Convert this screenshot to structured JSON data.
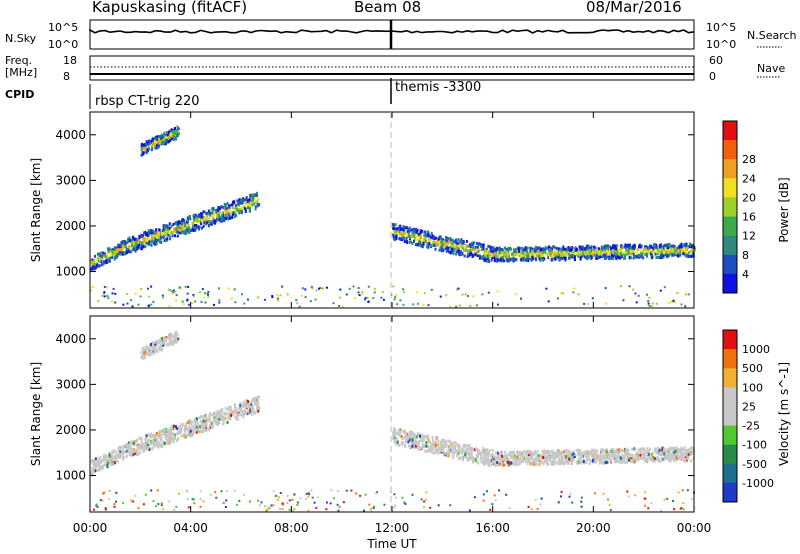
{
  "header": {
    "station": "Kapuskasing (fitACF)",
    "beam": "Beam 08",
    "date": "08/Mar/2016"
  },
  "top_panels": {
    "nsky_label": "N.Sky",
    "nsky_ticks": [
      "10^5",
      "10^0"
    ],
    "nsearch_label": "N.Search",
    "nsearch_ticks": [
      "10^5",
      "10^0"
    ],
    "freq_label": "Freq.",
    "freq_unit": "[MHz]",
    "freq_ticks": [
      "18",
      "8"
    ],
    "nave_label": "Nave",
    "nave_ticks": [
      "60",
      "0"
    ],
    "cpid_label": "CPID",
    "cpid_segments": [
      "rbsp CT-trig 220",
      "themis -3300"
    ]
  },
  "chart_data": [
    {
      "type": "heatmap",
      "title": "",
      "variable": "Power",
      "colorbar_label": "Power [dB]",
      "colorbar_ticks": [
        4,
        8,
        12,
        16,
        20,
        24,
        28
      ],
      "colors": [
        "#1010e0",
        "#1e4fc0",
        "#2f8a7a",
        "#3caa4a",
        "#9ed02a",
        "#f0e020",
        "#f0a020",
        "#f06010",
        "#e01010"
      ],
      "ylabel": "Slant Range [km]",
      "ylim": [
        200,
        4500
      ],
      "yticks": [
        1000,
        2000,
        3000,
        4000
      ],
      "xlim": [
        0,
        24
      ],
      "scatter_bands": [
        {
          "start_hour": 0.0,
          "end_hour": 1.5,
          "range_start": 1200,
          "range_end": 1600,
          "width": 300
        },
        {
          "start_hour": 1.5,
          "end_hour": 6.7,
          "range_start": 1600,
          "range_end": 2600,
          "width": 350
        },
        {
          "start_hour": 2.0,
          "end_hour": 3.5,
          "range_start": 3700,
          "range_end": 4100,
          "width": 250
        },
        {
          "start_hour": 12.0,
          "end_hour": 16.0,
          "range_start": 1900,
          "range_end": 1400,
          "width": 350
        },
        {
          "start_hour": 16.0,
          "end_hour": 24.0,
          "range_start": 1400,
          "range_end": 1500,
          "width": 300
        }
      ]
    },
    {
      "type": "heatmap",
      "title": "",
      "variable": "Velocity",
      "colorbar_label": "Velocity [m s^-1]",
      "colorbar_ticks": [
        1000,
        500,
        100,
        25,
        -25,
        -100,
        -500,
        -1000
      ],
      "colors": [
        "#1e3cc8",
        "#1e6e8c",
        "#2a8a4a",
        "#50c830",
        "#c8c8c8",
        "#c8c8c8",
        "#f0b030",
        "#f07010",
        "#e01010"
      ],
      "ylabel": "Slant Range [km]",
      "ylim": [
        200,
        4500
      ],
      "yticks": [
        1000,
        2000,
        3000,
        4000
      ],
      "xlim": [
        0,
        24
      ],
      "xlabel": "Time UT",
      "xticks": [
        "00:00",
        "04:00",
        "08:00",
        "12:00",
        "16:00",
        "20:00",
        "00:00"
      ]
    }
  ]
}
